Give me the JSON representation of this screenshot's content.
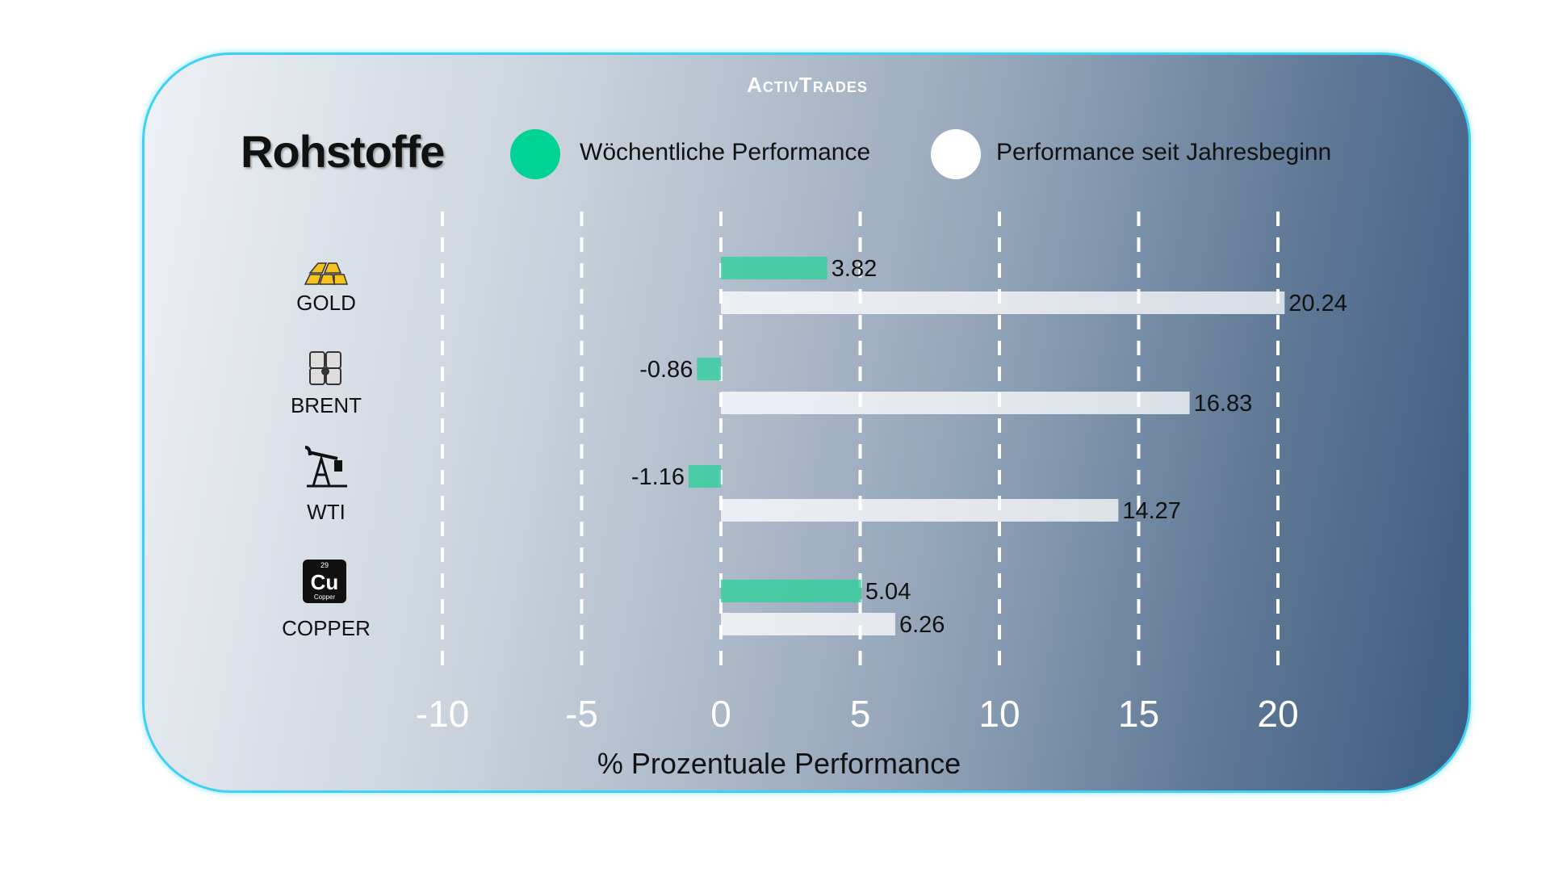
{
  "brand": {
    "logo_text": "ActivTrades"
  },
  "title": "Rohstoffe",
  "legend": [
    {
      "label": "Wöchentliche Performance",
      "color": "#2fcf9c"
    },
    {
      "label": "Performance seit Jahresbeginn",
      "color": "#ffffff"
    }
  ],
  "chart_data": {
    "type": "bar",
    "orientation": "horizontal",
    "categories": [
      "GOLD",
      "BRENT",
      "WTI",
      "COPPER"
    ],
    "category_icons": [
      "gold-bars-icon",
      "oil-barrels-icon",
      "oil-pump-icon",
      "copper-element-icon"
    ],
    "series": [
      {
        "name": "Wöchentliche Performance",
        "values": [
          3.82,
          -0.86,
          -1.16,
          5.04
        ],
        "color": "#2fcf9c"
      },
      {
        "name": "Performance seit Jahresbeginn",
        "values": [
          20.24,
          16.83,
          14.27,
          6.26
        ],
        "color": "#ffffff"
      }
    ],
    "data_labels": [
      [
        "3.82",
        "-0.86",
        "-1.16",
        "5.04"
      ],
      [
        "20.24",
        "16.83",
        "14.27",
        "6.26"
      ]
    ],
    "xlabel": "% Prozentuale Performance",
    "xlim": [
      -10,
      20
    ],
    "xticks": [
      "-10",
      "-5",
      "0",
      "5",
      "10",
      "15",
      "20"
    ],
    "grid": "vertical dashed",
    "legend_position": "top"
  }
}
